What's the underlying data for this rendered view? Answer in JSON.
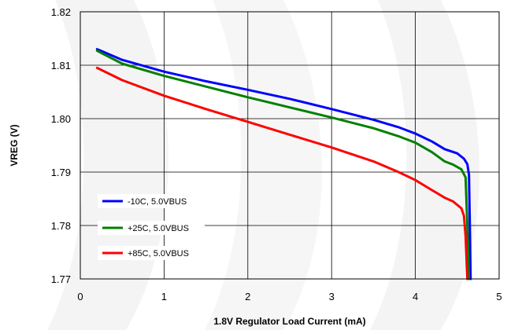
{
  "chart_data": {
    "type": "line",
    "title": "",
    "xlabel": "1.8V Regulator Load Current (mA)",
    "ylabel": "VREG (V)",
    "xlim": [
      0,
      5
    ],
    "ylim": [
      1.77,
      1.82
    ],
    "xticks": [
      "0",
      "1",
      "2",
      "3",
      "4",
      "5"
    ],
    "yticks": [
      "1.77",
      "1.78",
      "1.79",
      "1.80",
      "1.81",
      "1.82"
    ],
    "xtick_values": [
      0,
      1,
      2,
      3,
      4,
      5
    ],
    "ytick_values": [
      1.77,
      1.78,
      1.79,
      1.8,
      1.81,
      1.82
    ],
    "grid": true,
    "legend_position": "bottom-left",
    "series": [
      {
        "name": "-10C, 5.0VBUS",
        "color": "#0000ff",
        "x": [
          0.2,
          0.5,
          1.0,
          1.5,
          2.0,
          2.5,
          3.0,
          3.5,
          3.8,
          4.0,
          4.2,
          4.35,
          4.5,
          4.58,
          4.62,
          4.64,
          4.65,
          4.66
        ],
        "y": [
          1.813,
          1.811,
          1.8088,
          1.807,
          1.8054,
          1.8037,
          1.8018,
          1.7998,
          1.7984,
          1.7972,
          1.7957,
          1.7943,
          1.7935,
          1.7925,
          1.7915,
          1.7895,
          1.78,
          1.77
        ]
      },
      {
        "name": "+25C, 5.0VBUS",
        "color": "#008000",
        "x": [
          0.2,
          0.5,
          1.0,
          1.5,
          2.0,
          2.5,
          3.0,
          3.5,
          3.8,
          4.0,
          4.2,
          4.35,
          4.45,
          4.55,
          4.6,
          4.62,
          4.64
        ],
        "y": [
          1.8127,
          1.8103,
          1.808,
          1.806,
          1.804,
          1.8021,
          1.8002,
          1.7982,
          1.7967,
          1.7955,
          1.7937,
          1.792,
          1.7914,
          1.7905,
          1.789,
          1.78,
          1.77
        ]
      },
      {
        "name": "+85C, 5.0VBUS",
        "color": "#ff0000",
        "x": [
          0.2,
          0.5,
          1.0,
          1.5,
          2.0,
          2.5,
          3.0,
          3.5,
          3.8,
          4.0,
          4.2,
          4.35,
          4.45,
          4.55,
          4.58,
          4.6,
          4.62
        ],
        "y": [
          1.8095,
          1.8072,
          1.8043,
          1.8018,
          1.7994,
          1.797,
          1.7946,
          1.792,
          1.79,
          1.7885,
          1.7866,
          1.7852,
          1.7845,
          1.7832,
          1.7818,
          1.778,
          1.77
        ]
      }
    ]
  }
}
